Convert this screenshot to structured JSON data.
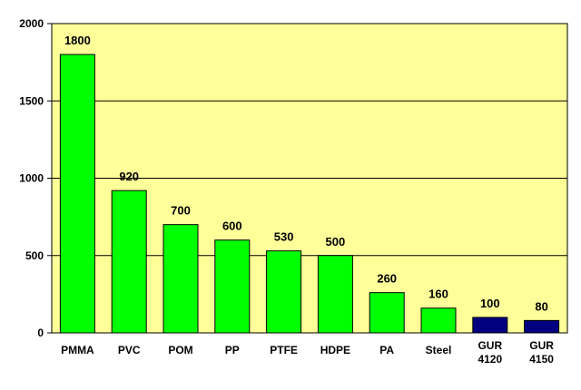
{
  "chart_data": {
    "type": "bar",
    "categories": [
      "PMMA",
      "PVC",
      "POM",
      "PP",
      "PTFE",
      "HDPE",
      "PA",
      "Steel",
      "GUR 4120",
      "GUR 4150"
    ],
    "values": [
      1800,
      920,
      700,
      600,
      530,
      500,
      260,
      160,
      100,
      80
    ],
    "data_labels": [
      "1800",
      "920",
      "700",
      "600",
      "530",
      "500",
      "260",
      "160",
      "100",
      "80"
    ],
    "bar_colors": [
      "#00ff00",
      "#00ff00",
      "#00ff00",
      "#00ff00",
      "#00ff00",
      "#00ff00",
      "#00ff00",
      "#00ff00",
      "#000080",
      "#000080"
    ],
    "ylim": [
      0,
      2000
    ],
    "yticks": [
      0,
      500,
      1000,
      1500,
      2000
    ],
    "ytick_labels": [
      "0",
      "500",
      "1000",
      "1500",
      "2000"
    ],
    "title": "",
    "xlabel": "",
    "ylabel": "",
    "grid": "horizontal",
    "legend": "none",
    "plot_background": "#ffff99"
  }
}
